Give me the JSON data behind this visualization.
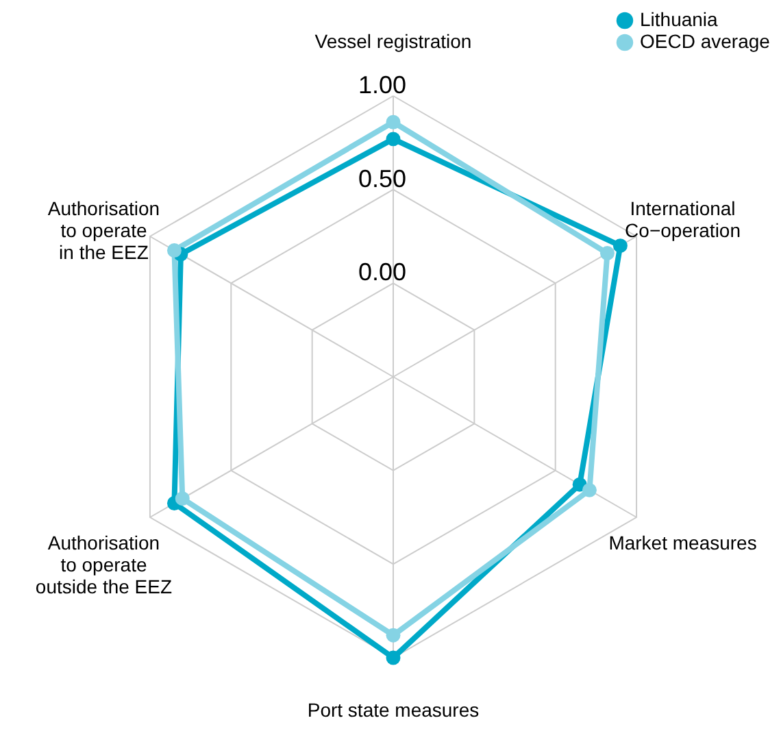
{
  "chart_data": {
    "type": "radar",
    "categories": [
      "Vessel registration",
      "International\nCo−operation",
      "Market measures",
      "Port state measures",
      "Authorisation\nto operate\noutside the EEZ",
      "Authorisation\nto operate\nin the EEZ"
    ],
    "series": [
      {
        "name": "Lithuania",
        "color": "#00a9c8",
        "values": [
          0.77,
          0.9,
          0.65,
          1.0,
          0.85,
          0.81
        ]
      },
      {
        "name": "OECD average",
        "color": "#85d3e4",
        "values": [
          0.86,
          0.82,
          0.71,
          0.88,
          0.8,
          0.85
        ]
      }
    ],
    "ylim": [
      -0.5,
      1.0
    ],
    "yticks": [
      {
        "value": 0,
        "label": "0.00"
      },
      {
        "value": 0.5,
        "label": "0.50"
      },
      {
        "value": 1.0,
        "label": "1.00"
      }
    ],
    "grid": true,
    "legend": "top right",
    "marker": "circle",
    "line_style": "solid"
  }
}
